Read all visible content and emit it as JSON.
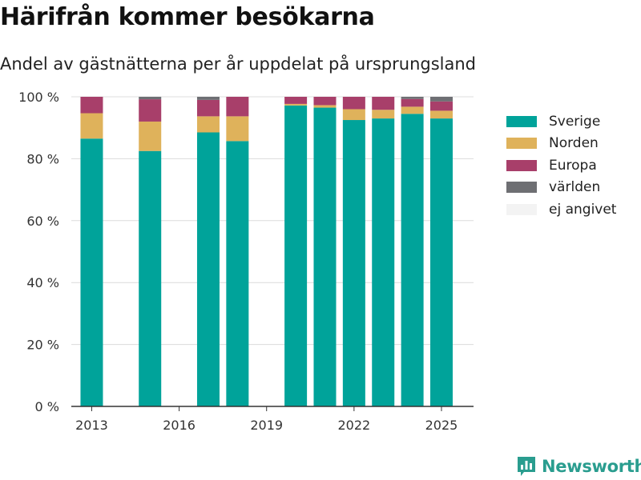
{
  "header": {
    "title": "Härifrån kommer besökarna",
    "subtitle": "Andel av gästnätterna per år uppdelat på ursprungsland"
  },
  "brand": {
    "name": "Newsworthy",
    "logo_icon": "bar-chart-speech-bubble-icon",
    "color": "#2a9d8f"
  },
  "chart_data": {
    "type": "bar",
    "stacked": true,
    "title": "Härifrån kommer besökarna",
    "subtitle": "Andel av gästnätterna per år uppdelat på ursprungsland",
    "x": [
      2013,
      2015,
      2017,
      2018,
      2020,
      2021,
      2022,
      2023,
      2024,
      2025
    ],
    "xticks": [
      2013,
      2016,
      2019,
      2022,
      2025
    ],
    "xlim": [
      2012.3,
      2026.1
    ],
    "yticks": [
      0,
      20,
      40,
      60,
      80,
      100
    ],
    "ytick_suffix": " %",
    "ylim": [
      0,
      100
    ],
    "grid": true,
    "legend_position": "right",
    "series": [
      {
        "name": "Sverige",
        "color": "#00a39a",
        "values": [
          86.5,
          82.5,
          88.5,
          85.7,
          97.2,
          96.5,
          92.5,
          93.0,
          94.5,
          93.0
        ]
      },
      {
        "name": "Norden",
        "color": "#dfb25b",
        "values": [
          8.2,
          9.5,
          5.2,
          8.0,
          0.5,
          0.8,
          3.5,
          2.8,
          2.3,
          2.5
        ]
      },
      {
        "name": "Europa",
        "color": "#a83f6a",
        "values": [
          5.3,
          7.2,
          5.3,
          6.3,
          2.3,
          2.7,
          4.0,
          4.2,
          2.5,
          3.0
        ]
      },
      {
        "name": "världen",
        "color": "#6e6f73",
        "values": [
          0.0,
          0.8,
          1.0,
          0.0,
          0.0,
          0.0,
          0.0,
          0.0,
          0.7,
          1.5
        ]
      },
      {
        "name": "ej angivet",
        "color": "#f3f3f3",
        "values": [
          0,
          0,
          0,
          0,
          0,
          0,
          0,
          0,
          0,
          0
        ]
      }
    ]
  }
}
